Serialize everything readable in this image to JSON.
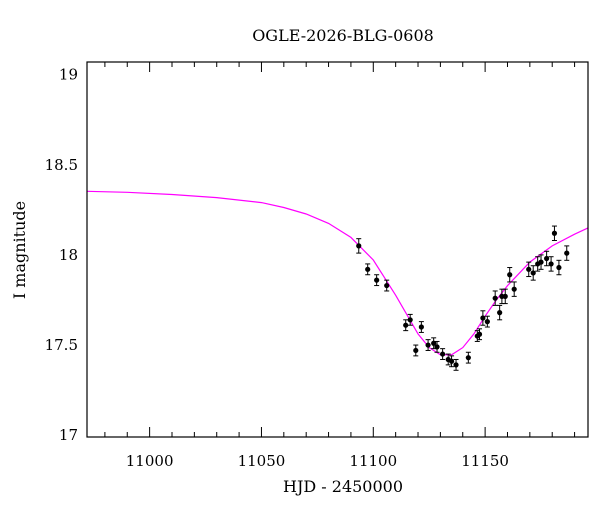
{
  "chart_data": {
    "type": "scatter",
    "title": "OGLE-2026-BLG-0608",
    "xlabel": "HJD - 2450000",
    "ylabel": "I magnitude",
    "xlim": [
      10972,
      11196
    ],
    "ylim": [
      19.07,
      16.99
    ],
    "y_inverted": true,
    "grid": false,
    "x_major_ticks": [
      11000,
      11050,
      11100,
      11150
    ],
    "x_tick_labels": [
      "11000",
      "11050",
      "11100",
      "11150"
    ],
    "x_minor_step": 10,
    "y_major_ticks": [
      17,
      17.5,
      18,
      18.5,
      19
    ],
    "y_tick_labels": [
      "17",
      "17.5",
      "18",
      "18.5",
      "19"
    ],
    "y_minor_step": 0.1,
    "colors": {
      "model": "#ff00ff",
      "points": "#000000",
      "axes": "#000000"
    },
    "series": [
      {
        "type": "scatter",
        "x": [
          11093.5,
          11097.5,
          11101.5,
          11106.0,
          11114.5,
          11116.5,
          11119.0,
          11121.5,
          11124.5,
          11127.0,
          11128.5,
          11131.0,
          11133.5,
          11135.0,
          11137.0,
          11142.5,
          11146.5,
          11147.5,
          11149.0,
          11151.0,
          11154.5,
          11156.5,
          11157.5,
          11159.0,
          11161.0,
          11163.0,
          11169.5,
          11171.5,
          11173.5,
          11175.0,
          11177.5,
          11179.5,
          11181.0,
          11183.0,
          11186.5
        ],
        "y": [
          18.05,
          17.92,
          17.86,
          17.83,
          17.61,
          17.64,
          17.47,
          17.6,
          17.5,
          17.51,
          17.49,
          17.45,
          17.42,
          17.41,
          17.39,
          17.43,
          17.55,
          17.56,
          17.65,
          17.63,
          17.76,
          17.68,
          17.77,
          17.77,
          17.89,
          17.81,
          17.92,
          17.9,
          17.95,
          17.96,
          17.98,
          17.95,
          18.12,
          17.93,
          18.01
        ],
        "err": [
          0.04,
          0.03,
          0.03,
          0.03,
          0.03,
          0.03,
          0.03,
          0.03,
          0.03,
          0.03,
          0.03,
          0.03,
          0.03,
          0.03,
          0.03,
          0.03,
          0.03,
          0.03,
          0.04,
          0.03,
          0.04,
          0.04,
          0.04,
          0.04,
          0.04,
          0.04,
          0.04,
          0.04,
          0.04,
          0.04,
          0.04,
          0.04,
          0.04,
          0.04,
          0.04
        ]
      },
      {
        "type": "line",
        "x": [
          10972,
          10990,
          11010,
          11030,
          11050,
          11060,
          11070,
          11080,
          11090,
          11100,
          11110,
          11120,
          11125,
          11130,
          11135,
          11140,
          11145,
          11150,
          11155,
          11160,
          11170,
          11180,
          11190,
          11196
        ],
        "y": [
          18.353,
          18.347,
          18.335,
          18.318,
          18.29,
          18.263,
          18.227,
          18.175,
          18.097,
          17.972,
          17.776,
          17.562,
          17.486,
          17.446,
          17.446,
          17.486,
          17.562,
          17.66,
          17.75,
          17.83,
          17.96,
          18.05,
          18.115,
          18.15
        ]
      }
    ]
  }
}
